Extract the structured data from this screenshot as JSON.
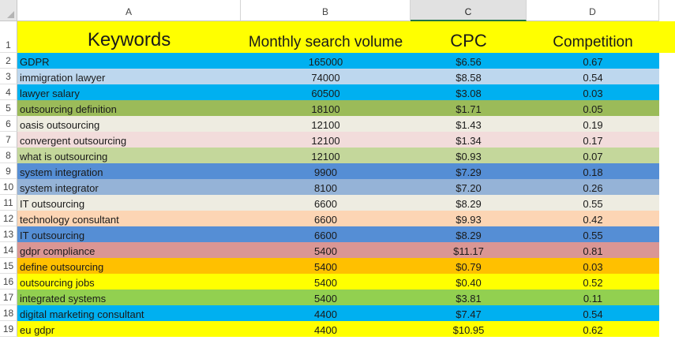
{
  "columns": [
    "A",
    "B",
    "C",
    "D"
  ],
  "selected_column": "C",
  "header_row": {
    "row_num": "1",
    "keywords": "Keywords",
    "volume": "Monthly search volume",
    "cpc": "CPC",
    "competition": "Competition",
    "bg": "#ffff00"
  },
  "rows": [
    {
      "num": "2",
      "keyword": "GDPR",
      "volume": "165000",
      "cpc": "$6.56",
      "competition": "0.67",
      "bg": "#00b0f0"
    },
    {
      "num": "3",
      "keyword": "immigration lawyer",
      "volume": "74000",
      "cpc": "$8.58",
      "competition": "0.54",
      "bg": "#bdd7ee"
    },
    {
      "num": "4",
      "keyword": "lawyer salary",
      "volume": "60500",
      "cpc": "$3.08",
      "competition": "0.03",
      "bg": "#00b0f0"
    },
    {
      "num": "5",
      "keyword": "outsourcing definition",
      "volume": "18100",
      "cpc": "$1.71",
      "competition": "0.05",
      "bg": "#9bbb59"
    },
    {
      "num": "6",
      "keyword": "oasis outsourcing",
      "volume": "12100",
      "cpc": "$1.43",
      "competition": "0.19",
      "bg": "#eeece1"
    },
    {
      "num": "7",
      "keyword": "convergent outsourcing",
      "volume": "12100",
      "cpc": "$1.34",
      "competition": "0.17",
      "bg": "#f2dcdb"
    },
    {
      "num": "8",
      "keyword": "what is outsourcing",
      "volume": "12100",
      "cpc": "$0.93",
      "competition": "0.07",
      "bg": "#c4d79b"
    },
    {
      "num": "9",
      "keyword": "system integration",
      "volume": "9900",
      "cpc": "$7.29",
      "competition": "0.18",
      "bg": "#558ed5"
    },
    {
      "num": "10",
      "keyword": "system integrator",
      "volume": "8100",
      "cpc": "$7.20",
      "competition": "0.26",
      "bg": "#95b3d7"
    },
    {
      "num": "11",
      "keyword": "IT outsourcing",
      "volume": "6600",
      "cpc": "$8.29",
      "competition": "0.55",
      "bg": "#eeece1"
    },
    {
      "num": "12",
      "keyword": "technology consultant",
      "volume": "6600",
      "cpc": "$9.93",
      "competition": "0.42",
      "bg": "#fcd5b4"
    },
    {
      "num": "13",
      "keyword": " IT outsourcing",
      "volume": "6600",
      "cpc": "$8.29",
      "competition": "0.55",
      "bg": "#558ed5"
    },
    {
      "num": "14",
      "keyword": "gdpr compliance",
      "volume": "5400",
      "cpc": "$11.17",
      "competition": "0.81",
      "bg": "#da9694"
    },
    {
      "num": "15",
      "keyword": "define outsourcing",
      "volume": "5400",
      "cpc": "$0.79",
      "competition": "0.03",
      "bg": "#ffc000"
    },
    {
      "num": "16",
      "keyword": "outsourcing jobs",
      "volume": "5400",
      "cpc": "$0.40",
      "competition": "0.52",
      "bg": "#ffff00"
    },
    {
      "num": "17",
      "keyword": "integrated systems",
      "volume": "5400",
      "cpc": "$3.81",
      "competition": "0.11",
      "bg": "#92d050"
    },
    {
      "num": "18",
      "keyword": "digital marketing consultant",
      "volume": "4400",
      "cpc": "$7.47",
      "competition": "0.54",
      "bg": "#00b0f0"
    },
    {
      "num": "19",
      "keyword": "eu gdpr",
      "volume": "4400",
      "cpc": "$10.95",
      "competition": "0.62",
      "bg": "#ffff00"
    }
  ]
}
